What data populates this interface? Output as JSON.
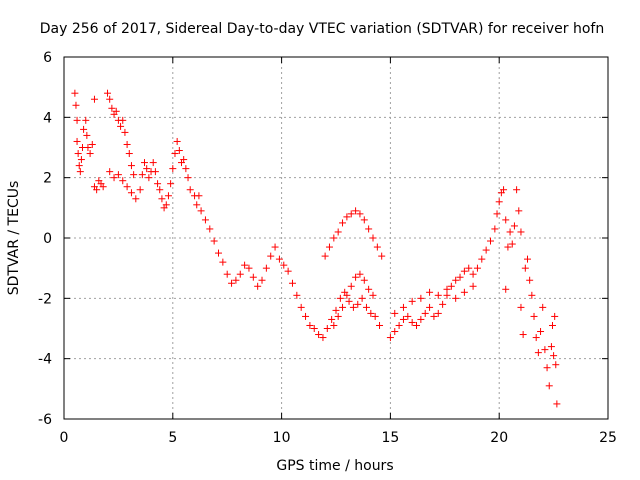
{
  "chart_data": {
    "type": "scatter",
    "title": "Day 256 of 2017, Sidereal Day-to-day VTEC variation (SDTVAR) for receiver hofn",
    "xlabel": "GPS time / hours",
    "ylabel": "SDTVAR / TECUs",
    "xlim": [
      0,
      25
    ],
    "ylim": [
      -6,
      6
    ],
    "xticks": [
      "0",
      "5",
      "10",
      "15",
      "20",
      "25"
    ],
    "yticks": [
      "6",
      "4",
      "2",
      "0",
      "-2",
      "-4",
      "-6"
    ],
    "grid": true,
    "marker": "+",
    "series": [
      {
        "name": "SDTVAR",
        "color": "#ff0000",
        "points": [
          [
            0.5,
            4.8
          ],
          [
            0.55,
            4.4
          ],
          [
            0.6,
            3.9
          ],
          [
            0.6,
            3.2
          ],
          [
            0.65,
            2.8
          ],
          [
            0.7,
            2.4
          ],
          [
            0.75,
            2.2
          ],
          [
            0.8,
            2.6
          ],
          [
            0.85,
            3.0
          ],
          [
            0.9,
            3.6
          ],
          [
            1.0,
            3.9
          ],
          [
            1.05,
            3.4
          ],
          [
            1.1,
            3.0
          ],
          [
            1.2,
            2.8
          ],
          [
            1.3,
            3.1
          ],
          [
            1.4,
            1.7
          ],
          [
            1.5,
            1.6
          ],
          [
            1.6,
            1.9
          ],
          [
            1.7,
            1.8
          ],
          [
            1.8,
            1.7
          ],
          [
            1.4,
            4.6
          ],
          [
            2.0,
            4.8
          ],
          [
            2.1,
            4.6
          ],
          [
            2.2,
            4.3
          ],
          [
            2.3,
            4.1
          ],
          [
            2.4,
            4.2
          ],
          [
            2.5,
            3.9
          ],
          [
            2.6,
            3.7
          ],
          [
            2.7,
            3.9
          ],
          [
            2.8,
            3.5
          ],
          [
            2.9,
            3.1
          ],
          [
            3.0,
            2.8
          ],
          [
            3.1,
            2.4
          ],
          [
            3.2,
            2.1
          ],
          [
            2.1,
            2.2
          ],
          [
            2.3,
            2.0
          ],
          [
            2.5,
            2.1
          ],
          [
            2.7,
            1.9
          ],
          [
            2.9,
            1.7
          ],
          [
            3.1,
            1.5
          ],
          [
            3.3,
            1.3
          ],
          [
            3.5,
            1.6
          ],
          [
            3.6,
            2.1
          ],
          [
            3.7,
            2.5
          ],
          [
            3.8,
            2.3
          ],
          [
            3.9,
            2.0
          ],
          [
            4.0,
            2.2
          ],
          [
            4.1,
            2.5
          ],
          [
            4.2,
            2.2
          ],
          [
            4.3,
            1.8
          ],
          [
            4.4,
            1.6
          ],
          [
            4.5,
            1.3
          ],
          [
            4.6,
            1.0
          ],
          [
            4.7,
            1.1
          ],
          [
            4.8,
            1.4
          ],
          [
            4.9,
            1.8
          ],
          [
            5.0,
            2.3
          ],
          [
            5.1,
            2.8
          ],
          [
            5.2,
            3.2
          ],
          [
            5.3,
            2.9
          ],
          [
            5.4,
            2.5
          ],
          [
            5.5,
            2.6
          ],
          [
            5.6,
            2.3
          ],
          [
            5.7,
            2.0
          ],
          [
            5.8,
            1.6
          ],
          [
            6.0,
            1.4
          ],
          [
            6.1,
            1.1
          ],
          [
            6.2,
            1.4
          ],
          [
            6.3,
            0.9
          ],
          [
            6.5,
            0.6
          ],
          [
            6.7,
            0.3
          ],
          [
            6.9,
            -0.1
          ],
          [
            7.1,
            -0.5
          ],
          [
            7.3,
            -0.8
          ],
          [
            7.5,
            -1.2
          ],
          [
            7.7,
            -1.5
          ],
          [
            7.9,
            -1.4
          ],
          [
            8.1,
            -1.2
          ],
          [
            8.3,
            -0.9
          ],
          [
            8.5,
            -1.0
          ],
          [
            8.7,
            -1.3
          ],
          [
            8.9,
            -1.6
          ],
          [
            9.1,
            -1.4
          ],
          [
            9.3,
            -1.0
          ],
          [
            9.5,
            -0.6
          ],
          [
            9.7,
            -0.3
          ],
          [
            9.9,
            -0.7
          ],
          [
            10.1,
            -0.9
          ],
          [
            10.3,
            -1.1
          ],
          [
            10.5,
            -1.5
          ],
          [
            10.7,
            -1.9
          ],
          [
            10.9,
            -2.3
          ],
          [
            11.1,
            -2.6
          ],
          [
            11.3,
            -2.9
          ],
          [
            11.5,
            -3.0
          ],
          [
            11.7,
            -3.2
          ],
          [
            11.9,
            -3.3
          ],
          [
            12.1,
            -3.0
          ],
          [
            12.3,
            -2.7
          ],
          [
            12.5,
            -2.4
          ],
          [
            12.7,
            -2.0
          ],
          [
            12.9,
            -1.8
          ],
          [
            13.1,
            -2.1
          ],
          [
            13.3,
            -2.3
          ],
          [
            13.5,
            -2.2
          ],
          [
            13.7,
            -2.0
          ],
          [
            13.9,
            -2.3
          ],
          [
            14.1,
            -2.5
          ],
          [
            14.3,
            -2.6
          ],
          [
            14.5,
            -2.9
          ],
          [
            12.4,
            -2.9
          ],
          [
            12.6,
            -2.6
          ],
          [
            12.8,
            -2.3
          ],
          [
            13.0,
            -1.9
          ],
          [
            13.2,
            -1.6
          ],
          [
            13.4,
            -1.3
          ],
          [
            13.6,
            -1.2
          ],
          [
            13.8,
            -1.4
          ],
          [
            14.0,
            -1.7
          ],
          [
            14.2,
            -1.9
          ],
          [
            12.0,
            -0.6
          ],
          [
            12.2,
            -0.3
          ],
          [
            12.4,
            0.0
          ],
          [
            12.6,
            0.2
          ],
          [
            12.8,
            0.5
          ],
          [
            13.0,
            0.7
          ],
          [
            13.2,
            0.8
          ],
          [
            13.4,
            0.9
          ],
          [
            13.6,
            0.8
          ],
          [
            13.8,
            0.6
          ],
          [
            14.0,
            0.3
          ],
          [
            14.2,
            0.0
          ],
          [
            14.4,
            -0.3
          ],
          [
            14.6,
            -0.6
          ],
          [
            15.0,
            -3.3
          ],
          [
            15.2,
            -3.1
          ],
          [
            15.4,
            -2.9
          ],
          [
            15.6,
            -2.7
          ],
          [
            15.8,
            -2.6
          ],
          [
            16.0,
            -2.8
          ],
          [
            16.2,
            -2.9
          ],
          [
            16.4,
            -2.7
          ],
          [
            16.6,
            -2.5
          ],
          [
            16.8,
            -2.3
          ],
          [
            17.0,
            -2.6
          ],
          [
            17.2,
            -2.5
          ],
          [
            17.4,
            -2.2
          ],
          [
            17.6,
            -1.9
          ],
          [
            17.8,
            -1.6
          ],
          [
            18.0,
            -1.4
          ],
          [
            18.2,
            -1.3
          ],
          [
            18.4,
            -1.1
          ],
          [
            18.6,
            -1.0
          ],
          [
            18.8,
            -1.2
          ],
          [
            15.2,
            -2.5
          ],
          [
            15.6,
            -2.3
          ],
          [
            16.0,
            -2.1
          ],
          [
            16.4,
            -2.0
          ],
          [
            16.8,
            -1.8
          ],
          [
            17.2,
            -1.9
          ],
          [
            17.6,
            -1.7
          ],
          [
            18.0,
            -2.0
          ],
          [
            18.4,
            -1.8
          ],
          [
            18.8,
            -1.6
          ],
          [
            19.0,
            -1.0
          ],
          [
            19.2,
            -0.7
          ],
          [
            19.4,
            -0.4
          ],
          [
            19.6,
            -0.1
          ],
          [
            19.8,
            0.3
          ],
          [
            19.9,
            0.8
          ],
          [
            20.0,
            1.2
          ],
          [
            20.1,
            1.5
          ],
          [
            20.2,
            1.6
          ],
          [
            20.3,
            0.6
          ],
          [
            20.3,
            -1.7
          ],
          [
            20.4,
            -0.3
          ],
          [
            20.5,
            0.2
          ],
          [
            20.6,
            -0.2
          ],
          [
            20.7,
            0.4
          ],
          [
            20.8,
            1.6
          ],
          [
            20.9,
            0.9
          ],
          [
            21.0,
            0.2
          ],
          [
            21.0,
            -2.3
          ],
          [
            21.1,
            -3.2
          ],
          [
            21.2,
            -1.0
          ],
          [
            21.3,
            -0.7
          ],
          [
            21.4,
            -1.4
          ],
          [
            21.5,
            -1.9
          ],
          [
            21.6,
            -2.6
          ],
          [
            21.7,
            -3.3
          ],
          [
            21.8,
            -3.8
          ],
          [
            21.9,
            -3.1
          ],
          [
            22.0,
            -2.3
          ],
          [
            22.1,
            -3.7
          ],
          [
            22.2,
            -4.3
          ],
          [
            22.3,
            -4.9
          ],
          [
            22.4,
            -3.6
          ],
          [
            22.45,
            -2.9
          ],
          [
            22.5,
            -3.9
          ],
          [
            22.55,
            -2.6
          ],
          [
            22.6,
            -4.2
          ],
          [
            22.65,
            -5.5
          ]
        ]
      }
    ]
  }
}
